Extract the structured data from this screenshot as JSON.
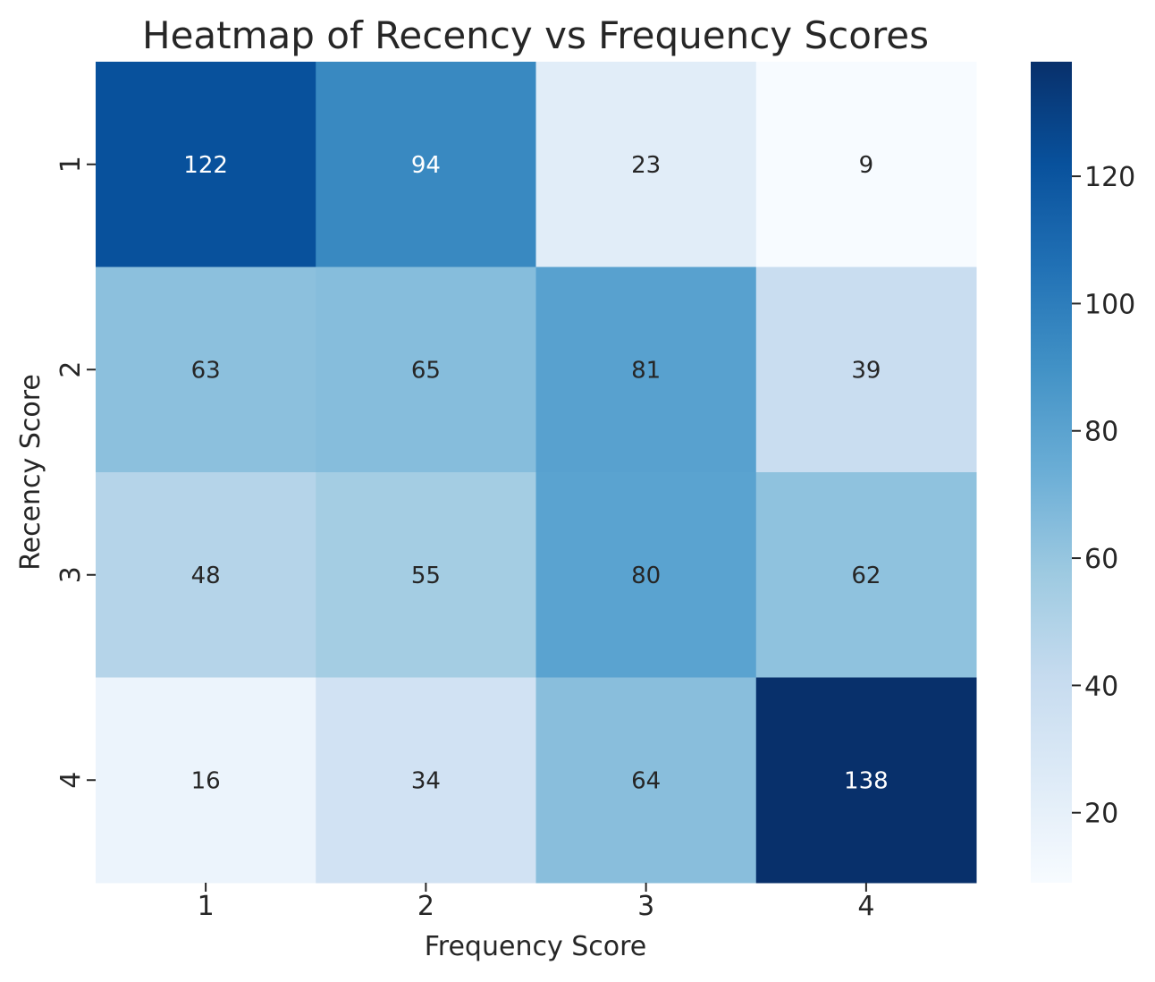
{
  "chart_data": {
    "type": "heatmap",
    "title": "Heatmap of Recency vs Frequency Scores",
    "xlabel": "Frequency Score",
    "ylabel": "Recency Score",
    "x_categories": [
      "1",
      "2",
      "3",
      "4"
    ],
    "y_categories": [
      "1",
      "2",
      "3",
      "4"
    ],
    "values": [
      [
        122,
        94,
        23,
        9
      ],
      [
        63,
        65,
        81,
        39
      ],
      [
        48,
        55,
        80,
        62
      ],
      [
        16,
        34,
        64,
        138
      ]
    ],
    "colorbar": {
      "min": 9,
      "max": 138,
      "ticks": [
        20,
        40,
        60,
        80,
        100,
        120
      ],
      "colormap": "Blues"
    },
    "colors": {
      "text": "#262626",
      "annotation_dark": "#262626",
      "annotation_light": "#ffffff"
    }
  }
}
